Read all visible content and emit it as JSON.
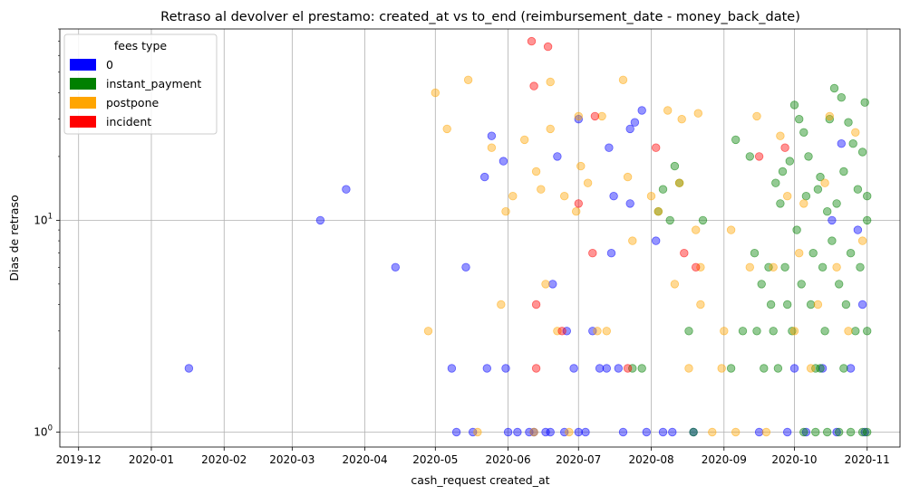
{
  "chart_data": {
    "type": "scatter",
    "title": "Retraso al devolver el prestamo: created_at vs to_end (reimbursement_date - money_back_date)",
    "xlabel": "cash_request created_at",
    "ylabel": "Dias de retraso",
    "x_scale": "time",
    "y_scale": "log",
    "xlim": [
      "2019-11-23",
      "2020-11-15"
    ],
    "ylim": [
      0.85,
      80
    ],
    "x_ticks": [
      "2019-12",
      "2020-01",
      "2020-02",
      "2020-03",
      "2020-04",
      "2020-05",
      "2020-06",
      "2020-07",
      "2020-08",
      "2020-09",
      "2020-10",
      "2020-11"
    ],
    "y_ticks": [
      {
        "value": 1,
        "base": "10",
        "exp": "0"
      },
      {
        "value": 10,
        "base": "10",
        "exp": "1"
      }
    ],
    "grid": true,
    "legend": {
      "title": "fees type",
      "placement": "top-left",
      "entries": [
        {
          "name": "0",
          "color": "#0000ff"
        },
        {
          "name": "instant_payment",
          "color": "#008000"
        },
        {
          "name": "postpone",
          "color": "#ffa500"
        },
        {
          "name": "incident",
          "color": "#ff0000"
        }
      ]
    },
    "series": [
      {
        "name": "0",
        "color": "#0000ff",
        "points": [
          [
            "2020-01-17",
            2
          ],
          [
            "2020-03-13",
            10
          ],
          [
            "2020-03-24",
            14
          ],
          [
            "2020-04-14",
            6
          ],
          [
            "2020-05-08",
            2
          ],
          [
            "2020-05-10",
            1
          ],
          [
            "2020-05-14",
            6
          ],
          [
            "2020-05-17",
            1
          ],
          [
            "2020-05-22",
            16
          ],
          [
            "2020-05-23",
            2
          ],
          [
            "2020-05-25",
            25
          ],
          [
            "2020-05-30",
            19
          ],
          [
            "2020-05-31",
            2
          ],
          [
            "2020-06-01",
            1
          ],
          [
            "2020-06-05",
            1
          ],
          [
            "2020-06-10",
            1
          ],
          [
            "2020-06-12",
            1
          ],
          [
            "2020-06-17",
            1
          ],
          [
            "2020-06-19",
            1
          ],
          [
            "2020-06-20",
            5
          ],
          [
            "2020-06-22",
            20
          ],
          [
            "2020-06-25",
            1
          ],
          [
            "2020-06-26",
            3
          ],
          [
            "2020-06-29",
            2
          ],
          [
            "2020-07-01",
            30
          ],
          [
            "2020-07-01",
            1
          ],
          [
            "2020-07-04",
            1
          ],
          [
            "2020-07-07",
            3
          ],
          [
            "2020-07-10",
            2
          ],
          [
            "2020-07-13",
            2
          ],
          [
            "2020-07-14",
            22
          ],
          [
            "2020-07-15",
            7
          ],
          [
            "2020-07-16",
            13
          ],
          [
            "2020-07-18",
            2
          ],
          [
            "2020-07-20",
            1
          ],
          [
            "2020-07-23",
            27
          ],
          [
            "2020-07-23",
            12
          ],
          [
            "2020-07-25",
            29
          ],
          [
            "2020-07-28",
            33
          ],
          [
            "2020-07-30",
            1
          ],
          [
            "2020-08-03",
            8
          ],
          [
            "2020-08-06",
            1
          ],
          [
            "2020-08-10",
            1
          ],
          [
            "2020-08-19",
            1
          ],
          [
            "2020-09-16",
            1
          ],
          [
            "2020-09-28",
            1
          ],
          [
            "2020-10-01",
            2
          ],
          [
            "2020-10-06",
            1
          ],
          [
            "2020-10-13",
            2
          ],
          [
            "2020-10-17",
            10
          ],
          [
            "2020-10-19",
            1
          ],
          [
            "2020-10-21",
            23
          ],
          [
            "2020-10-25",
            2
          ],
          [
            "2020-10-28",
            9
          ],
          [
            "2020-10-30",
            4
          ],
          [
            "2020-10-31",
            1
          ]
        ]
      },
      {
        "name": "instant_payment",
        "color": "#008000",
        "points": [
          [
            "2020-07-24",
            2
          ],
          [
            "2020-07-28",
            2
          ],
          [
            "2020-08-04",
            11
          ],
          [
            "2020-08-06",
            14
          ],
          [
            "2020-08-09",
            10
          ],
          [
            "2020-08-11",
            18
          ],
          [
            "2020-08-13",
            15
          ],
          [
            "2020-08-17",
            3
          ],
          [
            "2020-08-19",
            1
          ],
          [
            "2020-08-23",
            10
          ],
          [
            "2020-09-04",
            2
          ],
          [
            "2020-09-06",
            24
          ],
          [
            "2020-09-09",
            3
          ],
          [
            "2020-09-12",
            20
          ],
          [
            "2020-09-14",
            7
          ],
          [
            "2020-09-15",
            3
          ],
          [
            "2020-09-17",
            5
          ],
          [
            "2020-09-18",
            2
          ],
          [
            "2020-09-20",
            6
          ],
          [
            "2020-09-21",
            4
          ],
          [
            "2020-09-22",
            3
          ],
          [
            "2020-09-23",
            15
          ],
          [
            "2020-09-24",
            2
          ],
          [
            "2020-09-25",
            12
          ],
          [
            "2020-09-26",
            17
          ],
          [
            "2020-09-27",
            6
          ],
          [
            "2020-09-28",
            4
          ],
          [
            "2020-09-29",
            19
          ],
          [
            "2020-09-30",
            3
          ],
          [
            "2020-10-01",
            35
          ],
          [
            "2020-10-02",
            9
          ],
          [
            "2020-10-03",
            30
          ],
          [
            "2020-10-04",
            5
          ],
          [
            "2020-10-05",
            26
          ],
          [
            "2020-10-06",
            13
          ],
          [
            "2020-10-07",
            20
          ],
          [
            "2020-10-08",
            4
          ],
          [
            "2020-10-09",
            7
          ],
          [
            "2020-10-10",
            2
          ],
          [
            "2020-10-11",
            14
          ],
          [
            "2020-10-12",
            16
          ],
          [
            "2020-10-13",
            6
          ],
          [
            "2020-10-14",
            3
          ],
          [
            "2020-10-15",
            11
          ],
          [
            "2020-10-16",
            30
          ],
          [
            "2020-10-17",
            8
          ],
          [
            "2020-10-18",
            42
          ],
          [
            "2020-10-19",
            12
          ],
          [
            "2020-10-20",
            5
          ],
          [
            "2020-10-21",
            38
          ],
          [
            "2020-10-22",
            17
          ],
          [
            "2020-10-23",
            4
          ],
          [
            "2020-10-24",
            29
          ],
          [
            "2020-10-25",
            7
          ],
          [
            "2020-10-26",
            23
          ],
          [
            "2020-10-27",
            3
          ],
          [
            "2020-10-28",
            14
          ],
          [
            "2020-10-29",
            6
          ],
          [
            "2020-10-30",
            21
          ],
          [
            "2020-10-31",
            36
          ],
          [
            "2020-11-01",
            10
          ],
          [
            "2020-11-01",
            13
          ],
          [
            "2020-11-01",
            3
          ],
          [
            "2020-11-01",
            1
          ],
          [
            "2020-10-05",
            1
          ],
          [
            "2020-10-10",
            1
          ],
          [
            "2020-10-15",
            1
          ],
          [
            "2020-10-20",
            1
          ],
          [
            "2020-10-25",
            1
          ],
          [
            "2020-10-30",
            1
          ],
          [
            "2020-10-12",
            2
          ],
          [
            "2020-10-22",
            2
          ]
        ]
      },
      {
        "name": "postpone",
        "color": "#ffa500",
        "points": [
          [
            "2020-04-28",
            3
          ],
          [
            "2020-05-01",
            40
          ],
          [
            "2020-05-06",
            27
          ],
          [
            "2020-05-15",
            46
          ],
          [
            "2020-05-19",
            1
          ],
          [
            "2020-05-25",
            22
          ],
          [
            "2020-05-29",
            4
          ],
          [
            "2020-05-31",
            11
          ],
          [
            "2020-06-03",
            13
          ],
          [
            "2020-06-08",
            24
          ],
          [
            "2020-06-12",
            1
          ],
          [
            "2020-06-13",
            17
          ],
          [
            "2020-06-15",
            14
          ],
          [
            "2020-06-17",
            5
          ],
          [
            "2020-06-19",
            27
          ],
          [
            "2020-06-19",
            45
          ],
          [
            "2020-06-22",
            3
          ],
          [
            "2020-06-25",
            13
          ],
          [
            "2020-06-27",
            1
          ],
          [
            "2020-06-30",
            11
          ],
          [
            "2020-07-01",
            31
          ],
          [
            "2020-07-02",
            18
          ],
          [
            "2020-07-05",
            15
          ],
          [
            "2020-07-09",
            3
          ],
          [
            "2020-07-11",
            31
          ],
          [
            "2020-07-13",
            3
          ],
          [
            "2020-07-20",
            46
          ],
          [
            "2020-07-22",
            16
          ],
          [
            "2020-07-24",
            8
          ],
          [
            "2020-08-01",
            13
          ],
          [
            "2020-08-04",
            11
          ],
          [
            "2020-08-08",
            33
          ],
          [
            "2020-08-11",
            5
          ],
          [
            "2020-08-13",
            15
          ],
          [
            "2020-08-14",
            30
          ],
          [
            "2020-08-17",
            2
          ],
          [
            "2020-08-20",
            9
          ],
          [
            "2020-08-21",
            32
          ],
          [
            "2020-08-22",
            4
          ],
          [
            "2020-08-22",
            6
          ],
          [
            "2020-08-27",
            1
          ],
          [
            "2020-08-31",
            2
          ],
          [
            "2020-09-01",
            3
          ],
          [
            "2020-09-04",
            9
          ],
          [
            "2020-09-06",
            1
          ],
          [
            "2020-09-12",
            6
          ],
          [
            "2020-09-15",
            31
          ],
          [
            "2020-09-19",
            1
          ],
          [
            "2020-09-22",
            6
          ],
          [
            "2020-09-25",
            25
          ],
          [
            "2020-09-28",
            13
          ],
          [
            "2020-10-01",
            3
          ],
          [
            "2020-10-03",
            7
          ],
          [
            "2020-10-05",
            12
          ],
          [
            "2020-10-08",
            2
          ],
          [
            "2020-10-11",
            4
          ],
          [
            "2020-10-14",
            15
          ],
          [
            "2020-10-16",
            31
          ],
          [
            "2020-10-19",
            6
          ],
          [
            "2020-10-24",
            3
          ],
          [
            "2020-10-27",
            26
          ],
          [
            "2020-10-30",
            8
          ]
        ]
      },
      {
        "name": "incident",
        "color": "#ff0000",
        "points": [
          [
            "2020-06-11",
            70
          ],
          [
            "2020-06-12",
            43
          ],
          [
            "2020-06-13",
            4
          ],
          [
            "2020-06-13",
            2
          ],
          [
            "2020-06-18",
            66
          ],
          [
            "2020-06-24",
            3
          ],
          [
            "2020-07-01",
            12
          ],
          [
            "2020-07-07",
            7
          ],
          [
            "2020-07-08",
            31
          ],
          [
            "2020-07-22",
            2
          ],
          [
            "2020-08-03",
            22
          ],
          [
            "2020-08-15",
            7
          ],
          [
            "2020-08-20",
            6
          ],
          [
            "2020-09-16",
            20
          ],
          [
            "2020-09-27",
            22
          ]
        ]
      }
    ]
  }
}
